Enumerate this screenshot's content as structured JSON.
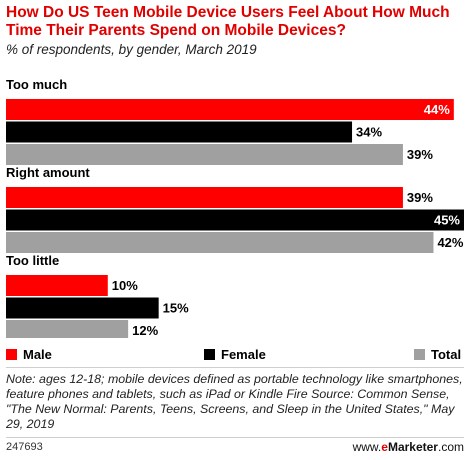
{
  "header": {
    "title": "How Do US Teen Mobile Device Users Feel About How Much Time Their Parents Spend on Mobile Devices?",
    "subtitle": "% of respondents, by gender, March 2019"
  },
  "chart_data": {
    "type": "bar",
    "orientation": "horizontal",
    "categories": [
      "Too much",
      "Right amount",
      "Too little"
    ],
    "series": [
      {
        "name": "Male",
        "color": "#ff0000",
        "values": [
          44,
          39,
          10
        ]
      },
      {
        "name": "Female",
        "color": "#000000",
        "values": [
          34,
          45,
          15
        ]
      },
      {
        "name": "Total",
        "color": "#a0a0a0",
        "values": [
          39,
          42,
          12
        ]
      }
    ],
    "value_suffix": "%",
    "xlim": [
      0,
      45
    ],
    "grid": false,
    "legend_position": "bottom"
  },
  "legend": {
    "male": "Male",
    "female": "Female",
    "total": "Total"
  },
  "note": "Note: ages 12-18; mobile devices defined as portable technology like smartphones, feature phones and tablets, such as iPad or Kindle Fire Source: Common Sense, \"The New Normal: Parents, Teens, Screens, and Sleep in the United States,\" May 29, 2019",
  "footer": {
    "chart_id": "247693",
    "brand_prefix": "www.",
    "brand_e": "e",
    "brand_name": "Marketer",
    "brand_suffix": ".com"
  }
}
